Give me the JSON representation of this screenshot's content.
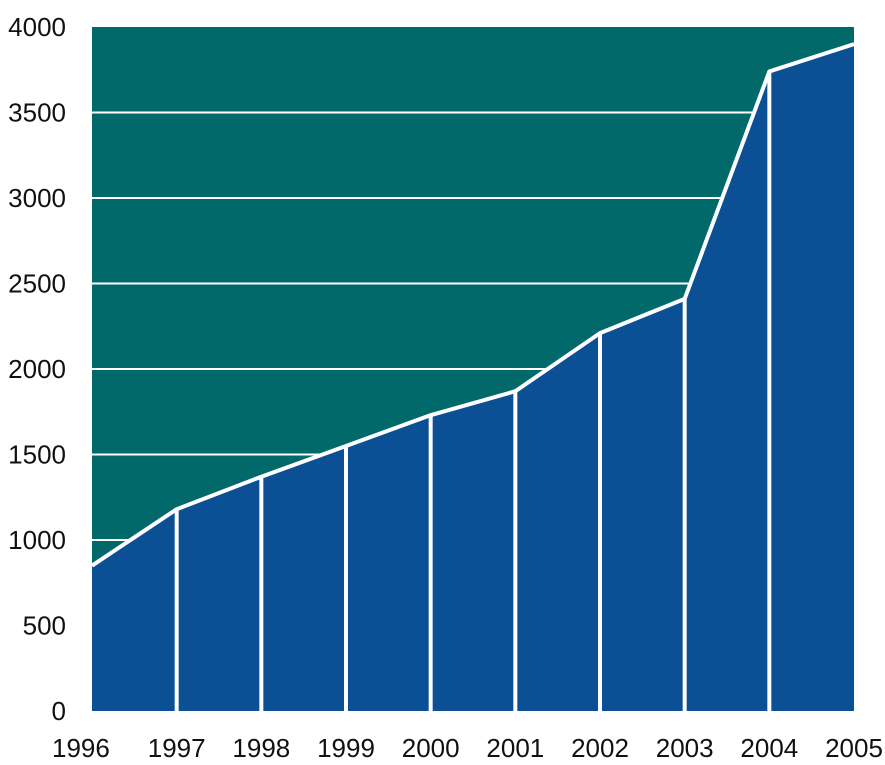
{
  "chart_data": {
    "type": "area",
    "x": [
      "1996",
      "1997",
      "1998",
      "1999",
      "2000",
      "2001",
      "2002",
      "2003",
      "2004",
      "2005"
    ],
    "series": [
      {
        "values": [
          850,
          1180,
          1370,
          1550,
          1730,
          1870,
          2210,
          2410,
          3740,
          3900
        ]
      }
    ],
    "ylim": [
      0,
      4000
    ],
    "yticks": [
      0,
      500,
      1000,
      1500,
      2000,
      2500,
      3000,
      3500,
      4000
    ],
    "xticks": [
      "1996",
      "1997",
      "1998",
      "1999",
      "2000",
      "2001",
      "2002",
      "2003",
      "2004",
      "2005"
    ],
    "grid": true,
    "title": "",
    "xlabel": "",
    "ylabel": "",
    "colors": {
      "plot_background": "#02696B",
      "area_fill": "#0B4F95",
      "lines": "#FFFFFF"
    }
  }
}
